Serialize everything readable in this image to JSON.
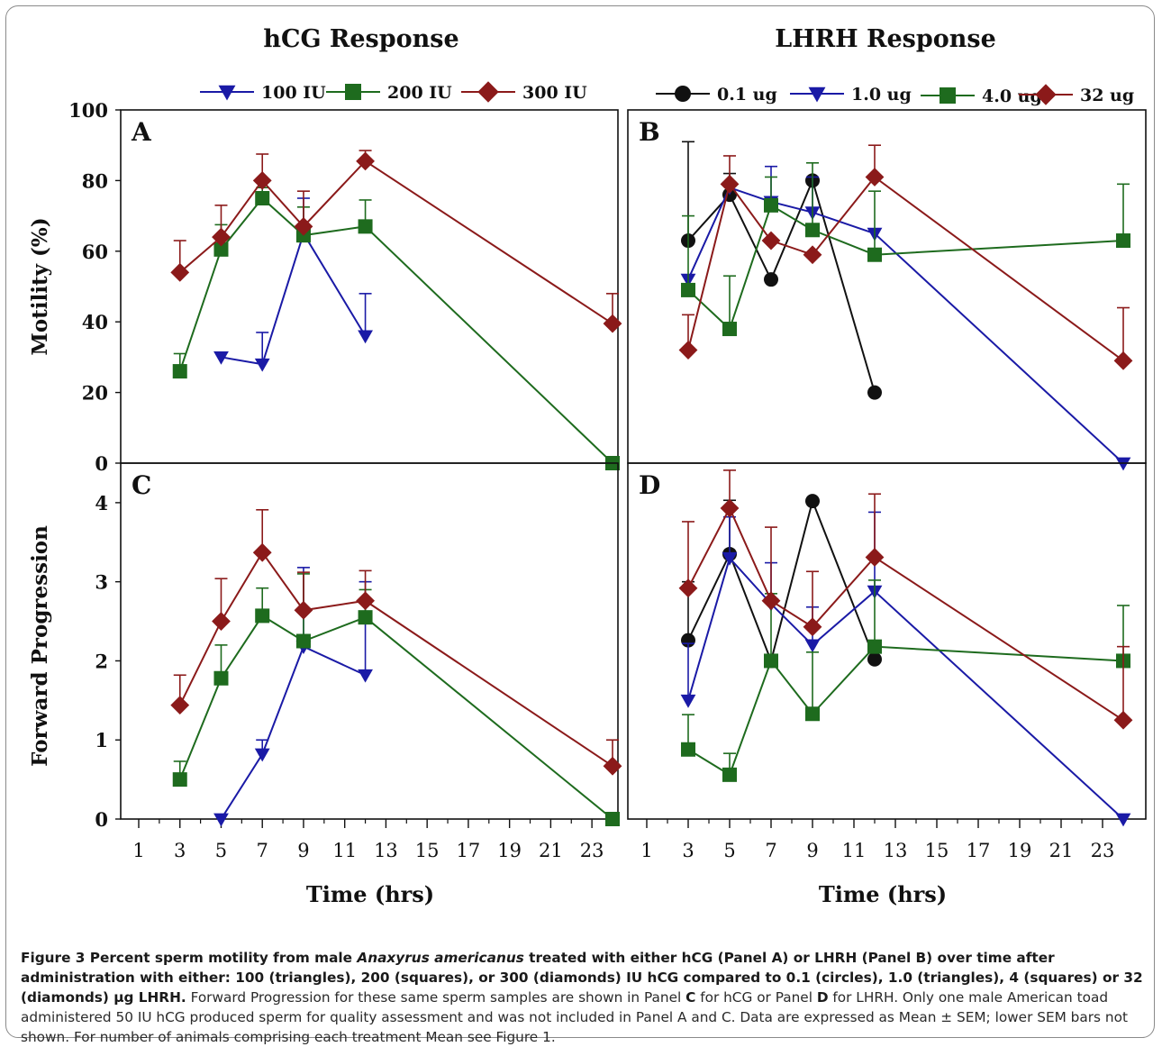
{
  "titles": {
    "left": "hCG Response",
    "right": "LHRH Response"
  },
  "axes": {
    "ylabel_top": "Motility (%)",
    "ylabel_bottom": "Forward Progression",
    "xlabel": "Time (hrs)",
    "x_ticks": [
      "1",
      "3",
      "5",
      "7",
      "9",
      "11",
      "13",
      "15",
      "17",
      "19",
      "21",
      "23"
    ],
    "y_ticks_top": [
      "0",
      "20",
      "40",
      "60",
      "80",
      "100"
    ],
    "y_ticks_bottom": [
      "0",
      "1",
      "2",
      "3",
      "4"
    ]
  },
  "legends": {
    "hcg": [
      {
        "label": "100 IU",
        "marker": "triangle-down",
        "color": "#1a1aa6"
      },
      {
        "label": "200 IU",
        "marker": "square",
        "color": "#1e6b1e"
      },
      {
        "label": "300 IU",
        "marker": "diamond",
        "color": "#8b1a1a"
      }
    ],
    "lhrh": [
      {
        "label": "0.1 ug",
        "marker": "circle",
        "color": "#111111"
      },
      {
        "label": "1.0 ug",
        "marker": "triangle-down",
        "color": "#1a1aa6"
      },
      {
        "label": "4.0 ug",
        "marker": "square",
        "color": "#1e6b1e"
      },
      {
        "label": "32 ug",
        "marker": "diamond",
        "color": "#8b1a1a"
      }
    ]
  },
  "chart_data": [
    {
      "panel": "A",
      "type": "line",
      "title": "hCG Response",
      "xlabel": "Time (hrs)",
      "ylabel": "Motility (%)",
      "xlim": [
        0,
        24.5
      ],
      "ylim": [
        0,
        100
      ],
      "series": [
        {
          "name": "100 IU",
          "marker": "triangle-down",
          "color": "#1a1aa6",
          "x": [
            5,
            7,
            9,
            12
          ],
          "y": [
            30,
            28,
            65,
            36
          ],
          "err": [
            null,
            9,
            10,
            12
          ]
        },
        {
          "name": "200 IU",
          "marker": "square",
          "color": "#1e6b1e",
          "x": [
            3,
            5,
            7,
            9,
            12,
            24
          ],
          "y": [
            26,
            60.5,
            75,
            64.5,
            67,
            0
          ],
          "err": [
            5,
            7,
            3,
            8,
            7.5,
            null
          ]
        },
        {
          "name": "300 IU",
          "marker": "diamond",
          "color": "#8b1a1a",
          "x": [
            3,
            5,
            7,
            9,
            12,
            24
          ],
          "y": [
            54,
            64,
            80,
            67,
            85.5,
            39.5
          ],
          "err": [
            9,
            9,
            7.5,
            10,
            3,
            8.5
          ]
        }
      ]
    },
    {
      "panel": "B",
      "type": "line",
      "title": "LHRH Response",
      "xlabel": "Time (hrs)",
      "ylabel": "Motility (%)",
      "xlim": [
        0,
        24.5
      ],
      "ylim": [
        0,
        100
      ],
      "series": [
        {
          "name": "0.1 ug",
          "marker": "circle",
          "color": "#111111",
          "x": [
            3,
            5,
            7,
            9,
            12
          ],
          "y": [
            63,
            76,
            52,
            80,
            20
          ],
          "err": [
            28,
            6,
            null,
            null,
            null
          ]
        },
        {
          "name": "1.0 ug",
          "marker": "triangle-down",
          "color": "#1a1aa6",
          "x": [
            3,
            5,
            7,
            9,
            12,
            24
          ],
          "y": [
            52,
            78,
            74,
            71,
            65,
            0
          ],
          "err": [
            null,
            null,
            10,
            10,
            null,
            null
          ]
        },
        {
          "name": "4.0 ug",
          "marker": "square",
          "color": "#1e6b1e",
          "x": [
            3,
            5,
            7,
            9,
            12,
            24
          ],
          "y": [
            49,
            38,
            73,
            66,
            59,
            63
          ],
          "err": [
            21,
            15,
            8,
            19,
            18,
            16
          ]
        },
        {
          "name": "32 ug",
          "marker": "diamond",
          "color": "#8b1a1a",
          "x": [
            3,
            5,
            7,
            9,
            12,
            24
          ],
          "y": [
            32,
            79,
            63,
            59,
            81,
            29
          ],
          "err": [
            10,
            8,
            null,
            null,
            9,
            15
          ]
        }
      ]
    },
    {
      "panel": "C",
      "type": "line",
      "xlabel": "Time (hrs)",
      "ylabel": "Forward Progression",
      "xlim": [
        0,
        24.5
      ],
      "ylim": [
        0,
        4.5
      ],
      "series": [
        {
          "name": "100 IU",
          "marker": "triangle-down",
          "color": "#1a1aa6",
          "x": [
            5,
            7,
            9,
            12
          ],
          "y": [
            0,
            0.82,
            2.18,
            1.82
          ],
          "err": [
            null,
            0.18,
            1.0,
            1.18
          ]
        },
        {
          "name": "200 IU",
          "marker": "square",
          "color": "#1e6b1e",
          "x": [
            3,
            5,
            7,
            9,
            12,
            24
          ],
          "y": [
            0.5,
            1.78,
            2.57,
            2.25,
            2.55,
            0
          ],
          "err": [
            0.23,
            0.42,
            0.35,
            0.85,
            0.35,
            null
          ]
        },
        {
          "name": "300 IU",
          "marker": "diamond",
          "color": "#8b1a1a",
          "x": [
            3,
            5,
            7,
            9,
            12,
            24
          ],
          "y": [
            1.44,
            2.5,
            3.37,
            2.64,
            2.76,
            0.67
          ],
          "err": [
            0.38,
            0.54,
            0.54,
            0.48,
            0.38,
            0.33
          ]
        }
      ]
    },
    {
      "panel": "D",
      "type": "line",
      "xlabel": "Time (hrs)",
      "ylabel": "Forward Progression",
      "xlim": [
        0,
        24.5
      ],
      "ylim": [
        0,
        4.5
      ],
      "series": [
        {
          "name": "0.1 ug",
          "marker": "circle",
          "color": "#111111",
          "x": [
            3,
            5,
            7,
            9,
            12
          ],
          "y": [
            2.26,
            3.35,
            2.0,
            4.02,
            2.02
          ],
          "err": [
            0.74,
            0.68,
            null,
            null,
            null
          ]
        },
        {
          "name": "1.0 ug",
          "marker": "triangle-down",
          "color": "#1a1aa6",
          "x": [
            3,
            5,
            7,
            9,
            12,
            24
          ],
          "y": [
            1.5,
            3.3,
            2.72,
            2.2,
            2.88,
            0
          ],
          "err": [
            0.72,
            0.52,
            0.52,
            0.48,
            1.0,
            null
          ]
        },
        {
          "name": "4.0 ug",
          "marker": "square",
          "color": "#1e6b1e",
          "x": [
            3,
            5,
            7,
            9,
            12,
            24
          ],
          "y": [
            0.88,
            0.56,
            2.0,
            1.33,
            2.18,
            2.0
          ],
          "err": [
            0.44,
            0.27,
            0.85,
            0.78,
            0.84,
            0.7
          ]
        },
        {
          "name": "32 ug",
          "marker": "diamond",
          "color": "#8b1a1a",
          "x": [
            3,
            5,
            7,
            9,
            12,
            24
          ],
          "y": [
            2.92,
            3.93,
            2.76,
            2.43,
            3.31,
            1.25
          ],
          "err": [
            0.84,
            0.48,
            0.93,
            0.7,
            0.8,
            0.93
          ]
        }
      ]
    }
  ],
  "caption": {
    "bold_1": "Figure 3 Percent sperm motility from male ",
    "bold_italic": "Anaxyrus americanus",
    "bold_2": " treated with either hCG (Panel A) or LHRH (Panel B) over time after administration with either: 100 (triangles), 200 (squares), or 300 (diamonds) IU hCG compared to 0.1 (circles), 1.0 (triangles), 4 (squares) or 32 (diamonds) μg LHRH.",
    "text_1": " Forward Progression for these same sperm samples are shown in Panel ",
    "panel_c": "C",
    "text_2": " for hCG or Panel ",
    "panel_d": "D",
    "text_3": " for LHRH. Only one male American toad administered 50 IU hCG produced sperm for quality assessment and was not included in Panel A and C. Data are expressed as Mean ± SEM; lower SEM bars not shown. For number of animals comprising each treatment Mean see Figure 1."
  }
}
